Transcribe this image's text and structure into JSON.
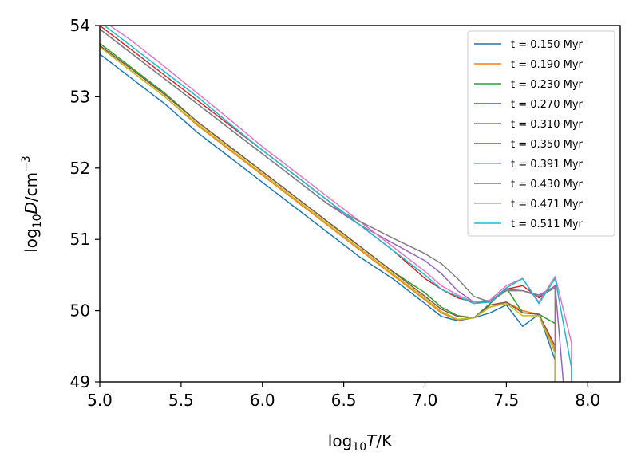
{
  "chart_data": {
    "type": "line",
    "xlabel_main": "log",
    "xlabel_sub": "10",
    "xlabel_var": "T",
    "xlabel_unit": "/K",
    "ylabel_main": "log",
    "ylabel_sub": "10",
    "ylabel_var": "D",
    "ylabel_unit": "/cm",
    "ylabel_exp": "−3",
    "xlim": [
      5.0,
      8.2
    ],
    "ylim": [
      49,
      54
    ],
    "xticks": [
      "5.0",
      "5.5",
      "6.0",
      "6.5",
      "7.0",
      "7.5",
      "8.0"
    ],
    "xtick_values": [
      5.0,
      5.5,
      6.0,
      6.5,
      7.0,
      7.5,
      8.0
    ],
    "yticks": [
      "49",
      "50",
      "51",
      "52",
      "53",
      "54"
    ],
    "ytick_values": [
      49,
      50,
      51,
      52,
      53,
      54
    ],
    "legend_position": "upper right",
    "series": [
      {
        "name": "t = 0.150 Myr",
        "color": "#1f77b4",
        "x": [
          5.0,
          5.2,
          5.4,
          5.6,
          5.8,
          6.0,
          6.2,
          6.4,
          6.6,
          6.8,
          7.0,
          7.1,
          7.2,
          7.3,
          7.4,
          7.5,
          7.6,
          7.7,
          7.8,
          7.8
        ],
        "y": [
          53.6,
          53.25,
          52.9,
          52.5,
          52.15,
          51.8,
          51.45,
          51.1,
          50.75,
          50.45,
          50.1,
          49.92,
          49.86,
          49.9,
          49.97,
          50.08,
          49.78,
          49.95,
          49.3,
          49.0
        ]
      },
      {
        "name": "t = 0.190 Myr",
        "color": "#ff7f0e",
        "x": [
          5.0,
          5.2,
          5.4,
          5.6,
          5.8,
          6.0,
          6.2,
          6.4,
          6.6,
          6.8,
          7.0,
          7.1,
          7.2,
          7.3,
          7.4,
          7.5,
          7.6,
          7.7,
          7.8,
          7.8
        ],
        "y": [
          53.7,
          53.35,
          53.0,
          52.6,
          52.25,
          51.9,
          51.55,
          51.2,
          50.85,
          50.5,
          50.15,
          49.97,
          49.87,
          49.9,
          50.05,
          50.12,
          50.0,
          49.95,
          49.45,
          49.0
        ]
      },
      {
        "name": "t = 0.230 Myr",
        "color": "#2ca02c",
        "x": [
          5.0,
          5.2,
          5.4,
          5.6,
          5.8,
          6.0,
          6.2,
          6.4,
          6.6,
          6.8,
          7.0,
          7.1,
          7.2,
          7.3,
          7.4,
          7.5,
          7.6,
          7.7,
          7.8
        ],
        "y": [
          53.75,
          53.4,
          53.05,
          52.65,
          52.3,
          51.95,
          51.6,
          51.25,
          50.9,
          50.55,
          50.25,
          50.05,
          49.93,
          49.9,
          50.1,
          50.32,
          49.97,
          49.95,
          49.82
        ]
      },
      {
        "name": "t = 0.270 Myr",
        "color": "#d62728",
        "x": [
          5.0,
          5.2,
          5.4,
          5.6,
          5.8,
          6.0,
          6.2,
          6.4,
          6.6,
          6.8,
          7.0,
          7.1,
          7.2,
          7.3,
          7.4,
          7.5,
          7.6,
          7.7,
          7.8,
          7.8
        ],
        "y": [
          54.0,
          53.65,
          53.3,
          52.95,
          52.6,
          52.25,
          51.9,
          51.55,
          51.2,
          50.85,
          50.45,
          50.3,
          50.18,
          50.12,
          50.12,
          50.3,
          50.35,
          50.18,
          50.35,
          49.0
        ]
      },
      {
        "name": "t = 0.310 Myr",
        "color": "#9467bd",
        "x": [
          5.0,
          5.2,
          5.4,
          5.6,
          5.8,
          6.0,
          6.2,
          6.4,
          6.6,
          6.8,
          7.0,
          7.1,
          7.2,
          7.3,
          7.4,
          7.5,
          7.6,
          7.7,
          7.8,
          7.85
        ],
        "y": [
          53.95,
          53.6,
          53.25,
          52.9,
          52.55,
          52.2,
          51.85,
          51.5,
          51.2,
          50.95,
          50.7,
          50.52,
          50.28,
          50.12,
          50.14,
          50.3,
          50.28,
          50.22,
          50.34,
          49.0
        ]
      },
      {
        "name": "t = 0.350 Myr",
        "color": "#8c564b",
        "x": [
          5.0,
          5.2,
          5.4,
          5.6,
          5.8,
          6.0,
          6.2,
          6.4,
          6.6,
          6.8,
          7.0,
          7.1,
          7.2,
          7.3,
          7.4,
          7.5,
          7.6,
          7.7,
          7.8,
          7.8
        ],
        "y": [
          53.72,
          53.38,
          53.03,
          52.65,
          52.3,
          51.95,
          51.6,
          51.25,
          50.9,
          50.55,
          50.2,
          50.02,
          49.92,
          49.9,
          50.08,
          50.12,
          49.97,
          49.95,
          49.5,
          49.0
        ]
      },
      {
        "name": "t = 0.391 Myr",
        "color": "#e377c2",
        "x": [
          5.0,
          5.2,
          5.4,
          5.6,
          5.8,
          6.0,
          6.2,
          6.4,
          6.6,
          6.8,
          7.0,
          7.1,
          7.2,
          7.3,
          7.4,
          7.5,
          7.6,
          7.7,
          7.8,
          7.9,
          7.9
        ],
        "y": [
          54.1,
          53.78,
          53.42,
          53.05,
          52.68,
          52.3,
          51.95,
          51.6,
          51.25,
          50.9,
          50.55,
          50.35,
          50.22,
          50.12,
          50.15,
          50.35,
          50.45,
          50.12,
          50.48,
          49.55,
          49.0
        ]
      },
      {
        "name": "t = 0.430 Myr",
        "color": "#7f7f7f",
        "x": [
          5.0,
          5.2,
          5.4,
          5.6,
          5.8,
          6.0,
          6.2,
          6.4,
          6.6,
          6.8,
          7.0,
          7.1,
          7.2,
          7.3,
          7.4,
          7.5,
          7.6,
          7.7,
          7.8,
          7.8
        ],
        "y": [
          53.95,
          53.6,
          53.25,
          52.9,
          52.55,
          52.2,
          51.85,
          51.5,
          51.25,
          51.02,
          50.8,
          50.66,
          50.45,
          50.2,
          50.12,
          50.28,
          50.28,
          50.2,
          50.32,
          49.0
        ]
      },
      {
        "name": "t = 0.471 Myr",
        "color": "#bcbd22",
        "x": [
          5.0,
          5.2,
          5.4,
          5.6,
          5.8,
          6.0,
          6.2,
          6.4,
          6.6,
          6.8,
          7.0,
          7.1,
          7.2,
          7.3,
          7.4,
          7.5,
          7.6,
          7.7,
          7.8,
          7.8
        ],
        "y": [
          53.7,
          53.35,
          53.0,
          52.62,
          52.27,
          51.92,
          51.57,
          51.22,
          50.87,
          50.52,
          50.17,
          49.99,
          49.88,
          49.9,
          50.05,
          50.1,
          49.93,
          49.93,
          49.4,
          49.0
        ]
      },
      {
        "name": "t = 0.511 Myr",
        "color": "#17becf",
        "x": [
          5.0,
          5.2,
          5.4,
          5.6,
          5.8,
          6.0,
          6.2,
          6.4,
          6.6,
          6.8,
          7.0,
          7.1,
          7.2,
          7.3,
          7.4,
          7.5,
          7.6,
          7.7,
          7.8,
          7.9,
          7.9
        ],
        "y": [
          54.05,
          53.7,
          53.35,
          53.0,
          52.62,
          52.25,
          51.9,
          51.55,
          51.2,
          50.85,
          50.5,
          50.3,
          50.2,
          50.1,
          50.12,
          50.32,
          50.45,
          50.1,
          50.45,
          49.2,
          49.0
        ]
      }
    ]
  }
}
